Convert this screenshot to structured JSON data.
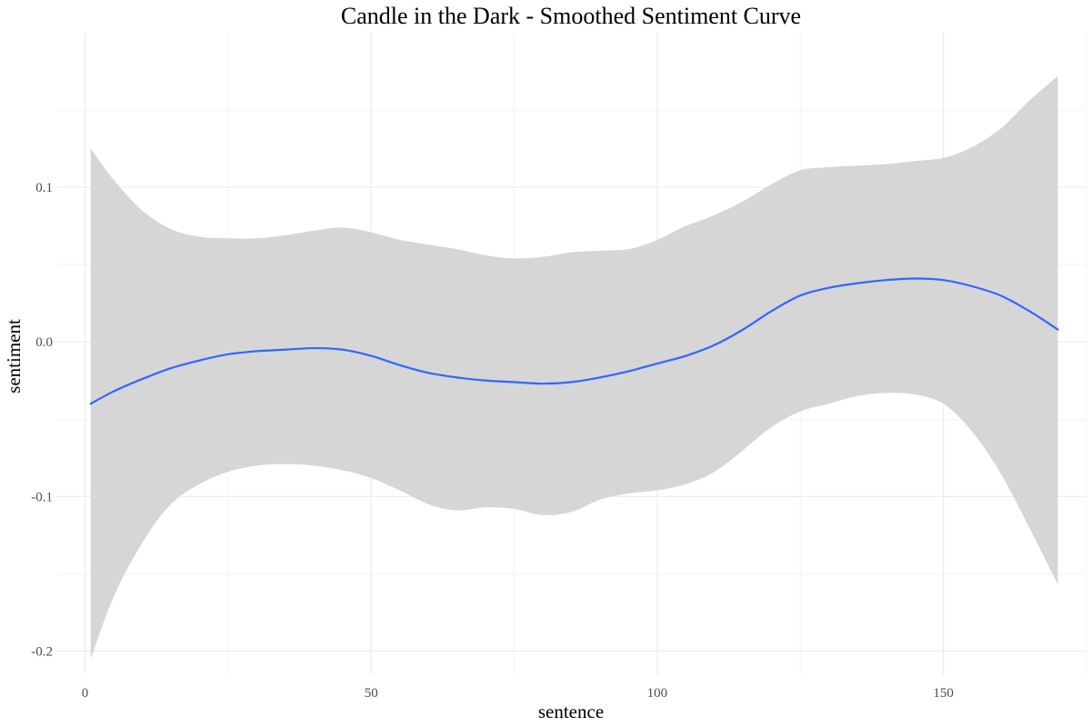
{
  "chart_data": {
    "type": "line",
    "title": "Candle in the Dark - Smoothed Sentiment Curve",
    "xlabel": "sentence",
    "ylabel": "sentiment",
    "xlim": [
      -5,
      175
    ],
    "ylim": [
      -0.215,
      0.2
    ],
    "x_ticks": [
      0,
      50,
      100,
      150
    ],
    "x_tick_labels": [
      "0",
      "50",
      "100",
      "150"
    ],
    "y_ticks": [
      -0.2,
      -0.1,
      0.0,
      0.1
    ],
    "y_tick_labels": [
      "-0.2",
      "-0.1",
      "0.0",
      "0.1"
    ],
    "grid": true,
    "legend": "none",
    "colors": {
      "line": "#3366ff",
      "ribbon": "#d6d6d6",
      "grid": "#ebebeb"
    },
    "series": [
      {
        "x": [
          1,
          5,
          10,
          15,
          20,
          25,
          30,
          35,
          40,
          45,
          50,
          55,
          60,
          65,
          70,
          75,
          80,
          85,
          90,
          95,
          100,
          105,
          110,
          115,
          120,
          125,
          130,
          135,
          140,
          145,
          150,
          155,
          160,
          165,
          170
        ],
        "y": [
          -0.04,
          -0.032,
          -0.024,
          -0.017,
          -0.012,
          -0.008,
          -0.006,
          -0.005,
          -0.004,
          -0.005,
          -0.009,
          -0.015,
          -0.02,
          -0.023,
          -0.025,
          -0.026,
          -0.027,
          -0.026,
          -0.023,
          -0.019,
          -0.014,
          -0.009,
          -0.002,
          0.008,
          0.02,
          0.03,
          0.035,
          0.038,
          0.04,
          0.041,
          0.04,
          0.036,
          0.03,
          0.02,
          0.008
        ],
        "lower": [
          -0.205,
          -0.165,
          -0.13,
          -0.105,
          -0.092,
          -0.084,
          -0.08,
          -0.079,
          -0.08,
          -0.083,
          -0.088,
          -0.096,
          -0.105,
          -0.109,
          -0.107,
          -0.108,
          -0.112,
          -0.11,
          -0.102,
          -0.098,
          -0.096,
          -0.092,
          -0.084,
          -0.07,
          -0.055,
          -0.045,
          -0.04,
          -0.035,
          -0.033,
          -0.034,
          -0.04,
          -0.058,
          -0.085,
          -0.12,
          -0.157
        ],
        "upper": [
          0.125,
          0.105,
          0.085,
          0.073,
          0.068,
          0.067,
          0.067,
          0.069,
          0.072,
          0.074,
          0.071,
          0.066,
          0.063,
          0.06,
          0.056,
          0.054,
          0.055,
          0.058,
          0.059,
          0.06,
          0.066,
          0.075,
          0.082,
          0.091,
          0.102,
          0.111,
          0.113,
          0.114,
          0.115,
          0.117,
          0.119,
          0.126,
          0.138,
          0.156,
          0.172
        ]
      }
    ]
  }
}
